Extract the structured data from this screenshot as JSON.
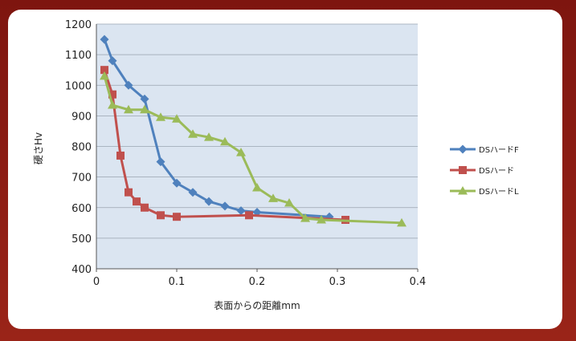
{
  "chart_data": {
    "type": "line",
    "xlabel": "表面からの距離mm",
    "ylabel": "硬さHv",
    "xlim": [
      0,
      0.4
    ],
    "ylim": [
      400,
      1200
    ],
    "xticks": [
      "0",
      "0.1",
      "0.2",
      "0.3",
      "0.4"
    ],
    "yticks": [
      "400",
      "500",
      "600",
      "700",
      "800",
      "900",
      "1000",
      "1100",
      "1200"
    ],
    "grid": "horizontal",
    "legend": "right",
    "series": [
      {
        "name": "DSハードF",
        "color": "#4f81bd",
        "marker": "diamond",
        "x": [
          0.01,
          0.02,
          0.04,
          0.06,
          0.08,
          0.1,
          0.12,
          0.14,
          0.16,
          0.18,
          0.2,
          0.29
        ],
        "y": [
          1150,
          1080,
          1000,
          955,
          750,
          680,
          650,
          620,
          605,
          590,
          585,
          570
        ]
      },
      {
        "name": "DSハード",
        "color": "#c0504d",
        "marker": "square",
        "x": [
          0.01,
          0.02,
          0.03,
          0.04,
          0.05,
          0.06,
          0.08,
          0.1,
          0.19,
          0.31
        ],
        "y": [
          1050,
          970,
          770,
          650,
          620,
          600,
          575,
          570,
          575,
          560
        ]
      },
      {
        "name": "DSハードL",
        "color": "#9bbb59",
        "marker": "triangle",
        "x": [
          0.01,
          0.02,
          0.04,
          0.06,
          0.08,
          0.1,
          0.12,
          0.14,
          0.16,
          0.18,
          0.2,
          0.22,
          0.24,
          0.26,
          0.28,
          0.38
        ],
        "y": [
          1030,
          935,
          920,
          920,
          895,
          890,
          840,
          830,
          815,
          780,
          665,
          630,
          615,
          565,
          560,
          550
        ]
      }
    ]
  }
}
